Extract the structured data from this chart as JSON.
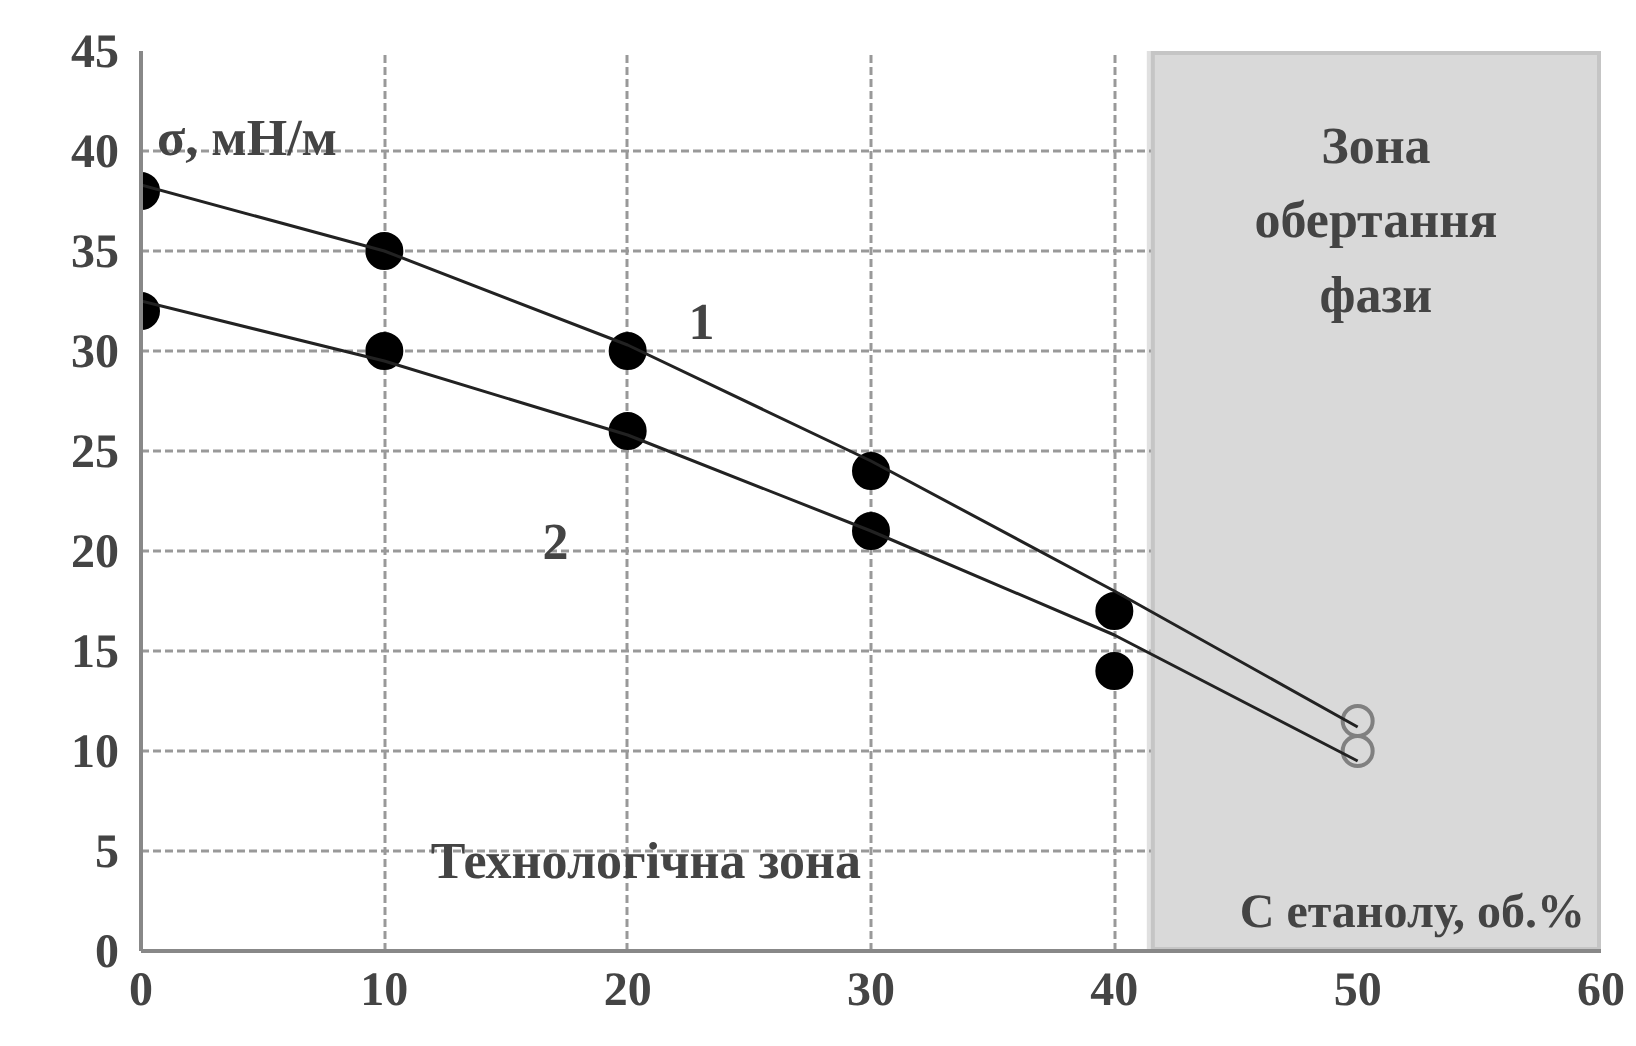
{
  "chart_data": {
    "type": "scatter",
    "xlabel": "C етанолу, об.%",
    "ylabel": "σ, мН/м",
    "xlim": [
      0,
      60
    ],
    "xticks": [
      0,
      10,
      20,
      30,
      40,
      50,
      60
    ],
    "ylim": [
      0,
      45
    ],
    "yticks": [
      0,
      5,
      10,
      15,
      20,
      25,
      30,
      35,
      40,
      45
    ],
    "grid": true,
    "legend": false,
    "series": [
      {
        "name": "1",
        "marker": "circle",
        "color": "#000000",
        "x": [
          0,
          10,
          20,
          30,
          40
        ],
        "values": [
          38,
          35,
          30,
          24,
          17
        ]
      },
      {
        "name": "2",
        "marker": "circle",
        "color": "#000000",
        "x": [
          0,
          10,
          20,
          30,
          40
        ],
        "values": [
          32,
          30,
          26,
          21,
          14
        ]
      },
      {
        "marker": "circle",
        "color": "#808080",
        "x": [
          50,
          50
        ],
        "values": [
          11.5,
          10
        ]
      },
      {
        "type": "line",
        "marker": "none",
        "color": "#222222",
        "x": [
          0,
          10,
          20,
          30,
          40,
          50
        ],
        "values": [
          38.3,
          35,
          30.3,
          24.5,
          18,
          11.2
        ]
      },
      {
        "type": "line",
        "marker": "none",
        "color": "#222222",
        "x": [
          0,
          10,
          20,
          30,
          40,
          50
        ],
        "values": [
          32.5,
          29.5,
          25.8,
          21,
          15.8,
          9.5
        ]
      }
    ],
    "bands": [
      {
        "axis": "x",
        "from": 41.5,
        "to": 60,
        "label": "Зона обертання фази",
        "color": "#d9d9d9"
      }
    ],
    "annotations": [
      "Технологічна зона"
    ]
  }
}
